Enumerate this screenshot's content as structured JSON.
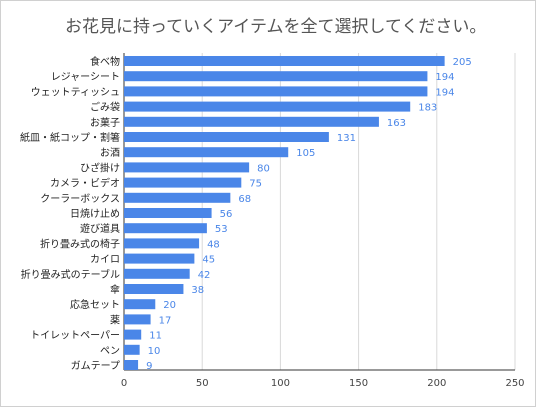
{
  "chart_data": {
    "type": "bar",
    "orientation": "horizontal",
    "title": "お花見に持っていくアイテムを全て選択してください。",
    "categories": [
      "食べ物",
      "レジャーシート",
      "ウェットティッシュ",
      "ごみ袋",
      "お菓子",
      "紙皿・紙コップ・割箸",
      "お酒",
      "ひざ掛け",
      "カメラ・ビデオ",
      "クーラーボックス",
      "日焼け止め",
      "遊び道具",
      "折り畳み式の椅子",
      "カイロ",
      "折り畳み式のテーブル",
      "傘",
      "応急セット",
      "薬",
      "トイレットペーパー",
      "ペン",
      "ガムテープ"
    ],
    "values": [
      205,
      194,
      194,
      183,
      163,
      131,
      105,
      80,
      75,
      68,
      56,
      53,
      48,
      45,
      42,
      38,
      20,
      17,
      11,
      10,
      9
    ],
    "xlim": [
      0,
      250
    ],
    "xticks": [
      0,
      50,
      100,
      150,
      200,
      250
    ],
    "xlabel": "",
    "ylabel": "",
    "grid": true,
    "bar_color": "#4a86e8",
    "label_color": "#4a86e8"
  }
}
